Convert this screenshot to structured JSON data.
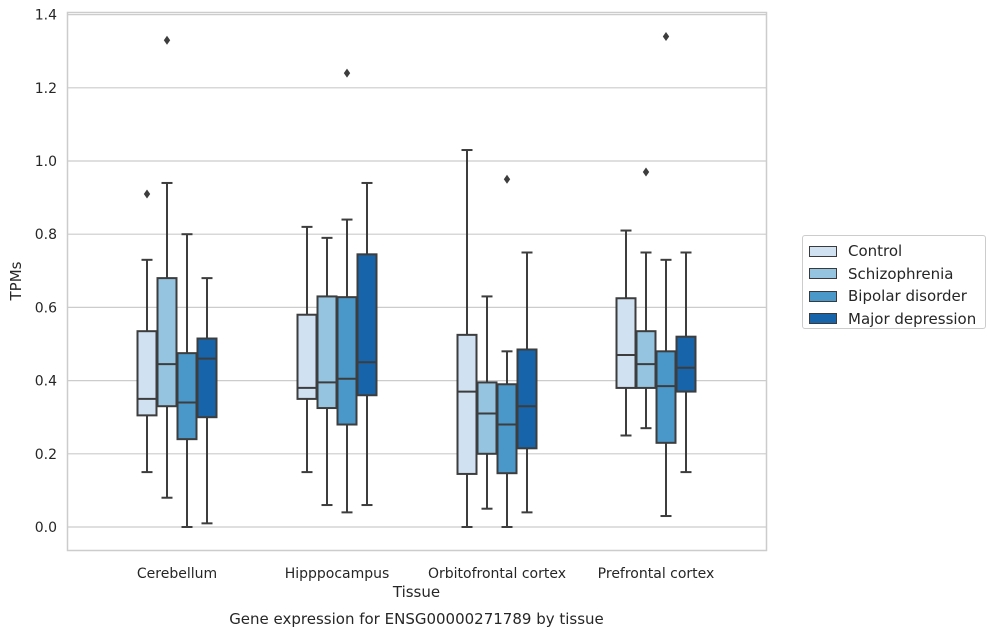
{
  "chart_data": {
    "type": "boxplot",
    "caption": "Gene expression for ENSG00000271789 by tissue",
    "xlabel": "Tissue",
    "ylabel": "TPMs",
    "ylim": [
      -0.06,
      1.41
    ],
    "yticks": [
      "0.0",
      "0.2",
      "0.4",
      "0.6",
      "0.8",
      "1.0",
      "1.2",
      "1.4"
    ],
    "grid": true,
    "legend_position": "right",
    "categories": [
      "Cerebellum",
      "Hipppocampus",
      "Orbitofrontal cortex",
      "Prefrontal cortex"
    ],
    "series": [
      {
        "name": "Control",
        "color": "#d0e1f2",
        "boxes": [
          {
            "min": 0.15,
            "q1": 0.305,
            "median": 0.35,
            "q3": 0.535,
            "max": 0.73,
            "outliers": [
              0.91
            ]
          },
          {
            "min": 0.15,
            "q1": 0.35,
            "median": 0.38,
            "q3": 0.58,
            "max": 0.82,
            "outliers": []
          },
          {
            "min": 0.0,
            "q1": 0.145,
            "median": 0.37,
            "q3": 0.525,
            "max": 1.03,
            "outliers": []
          },
          {
            "min": 0.25,
            "q1": 0.38,
            "median": 0.47,
            "q3": 0.625,
            "max": 0.81,
            "outliers": []
          }
        ]
      },
      {
        "name": "Schizophrenia",
        "color": "#94c4df",
        "boxes": [
          {
            "min": 0.08,
            "q1": 0.33,
            "median": 0.445,
            "q3": 0.68,
            "max": 0.94,
            "outliers": [
              1.33
            ]
          },
          {
            "min": 0.06,
            "q1": 0.325,
            "median": 0.395,
            "q3": 0.63,
            "max": 0.79,
            "outliers": []
          },
          {
            "min": 0.05,
            "q1": 0.2,
            "median": 0.31,
            "q3": 0.395,
            "max": 0.63,
            "outliers": []
          },
          {
            "min": 0.27,
            "q1": 0.38,
            "median": 0.445,
            "q3": 0.535,
            "max": 0.75,
            "outliers": [
              0.97
            ]
          }
        ]
      },
      {
        "name": "Bipolar disorder",
        "color": "#4a98c9",
        "boxes": [
          {
            "min": 0.0,
            "q1": 0.24,
            "median": 0.34,
            "q3": 0.475,
            "max": 0.8,
            "outliers": []
          },
          {
            "min": 0.04,
            "q1": 0.28,
            "median": 0.405,
            "q3": 0.628,
            "max": 0.84,
            "outliers": [
              1.24
            ]
          },
          {
            "min": 0.0,
            "q1": 0.147,
            "median": 0.28,
            "q3": 0.39,
            "max": 0.48,
            "outliers": [
              0.95
            ]
          },
          {
            "min": 0.03,
            "q1": 0.23,
            "median": 0.385,
            "q3": 0.48,
            "max": 0.73,
            "outliers": [
              1.34
            ]
          }
        ]
      },
      {
        "name": "Major depression",
        "color": "#1764ab",
        "boxes": [
          {
            "min": 0.01,
            "q1": 0.3,
            "median": 0.46,
            "q3": 0.515,
            "max": 0.68,
            "outliers": []
          },
          {
            "min": 0.06,
            "q1": 0.36,
            "median": 0.45,
            "q3": 0.745,
            "max": 0.94,
            "outliers": []
          },
          {
            "min": 0.04,
            "q1": 0.215,
            "median": 0.33,
            "q3": 0.485,
            "max": 0.75,
            "outliers": []
          },
          {
            "min": 0.15,
            "q1": 0.37,
            "median": 0.435,
            "q3": 0.52,
            "max": 0.75,
            "outliers": []
          }
        ]
      }
    ]
  }
}
